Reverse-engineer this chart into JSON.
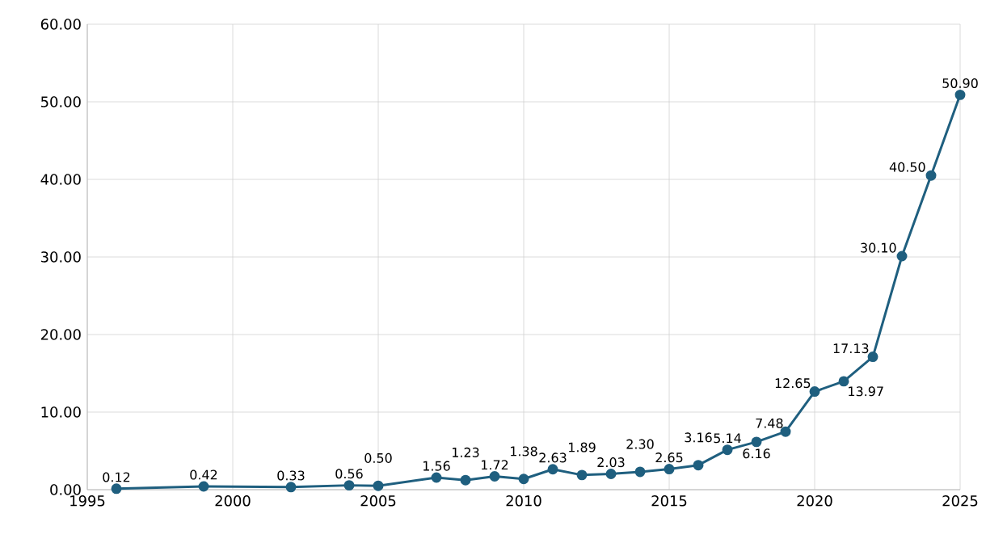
{
  "chart_data": {
    "type": "line",
    "x": [
      1996,
      1999,
      2002,
      2004,
      2005,
      2007,
      2008,
      2009,
      2010,
      2011,
      2012,
      2013,
      2014,
      2015,
      2016,
      2017,
      2018,
      2019,
      2020,
      2021,
      2022,
      2023,
      2024,
      2025
    ],
    "values": [
      0.12,
      0.42,
      0.33,
      0.56,
      0.5,
      1.56,
      1.23,
      1.72,
      1.38,
      2.63,
      1.89,
      2.03,
      2.3,
      2.65,
      3.16,
      5.14,
      6.16,
      7.48,
      12.65,
      13.97,
      17.13,
      30.1,
      40.5,
      50.9
    ],
    "color": "#1f5f7f",
    "xlim": [
      1995,
      2025
    ],
    "xticks": [
      1995,
      2000,
      2005,
      2010,
      2015,
      2020,
      2025
    ],
    "ylim": [
      0,
      60
    ],
    "yticks": [
      {
        "value": 0,
        "label": "0.00"
      },
      {
        "value": 10,
        "label": "10.00"
      },
      {
        "value": 20,
        "label": "20.00"
      },
      {
        "value": 30,
        "label": "30.00"
      },
      {
        "value": 40,
        "label": "40.00"
      },
      {
        "value": 50,
        "label": "50.00"
      },
      {
        "value": 60,
        "label": "60.00"
      }
    ],
    "value_labels": [
      "0.12",
      "0.42",
      "0.33",
      "0.56",
      "0.50",
      "1.56",
      "1.23",
      "1.72",
      "1.38",
      "2.63",
      "1.89",
      "2.03",
      "2.30",
      "2.65",
      "3.16",
      "5.14",
      "6.16",
      "7.48",
      "12.65",
      "13.97",
      "17.13",
      "30.10",
      "40.50",
      "50.90"
    ],
    "grid": true,
    "marker": "circle",
    "line_style": "solid"
  }
}
